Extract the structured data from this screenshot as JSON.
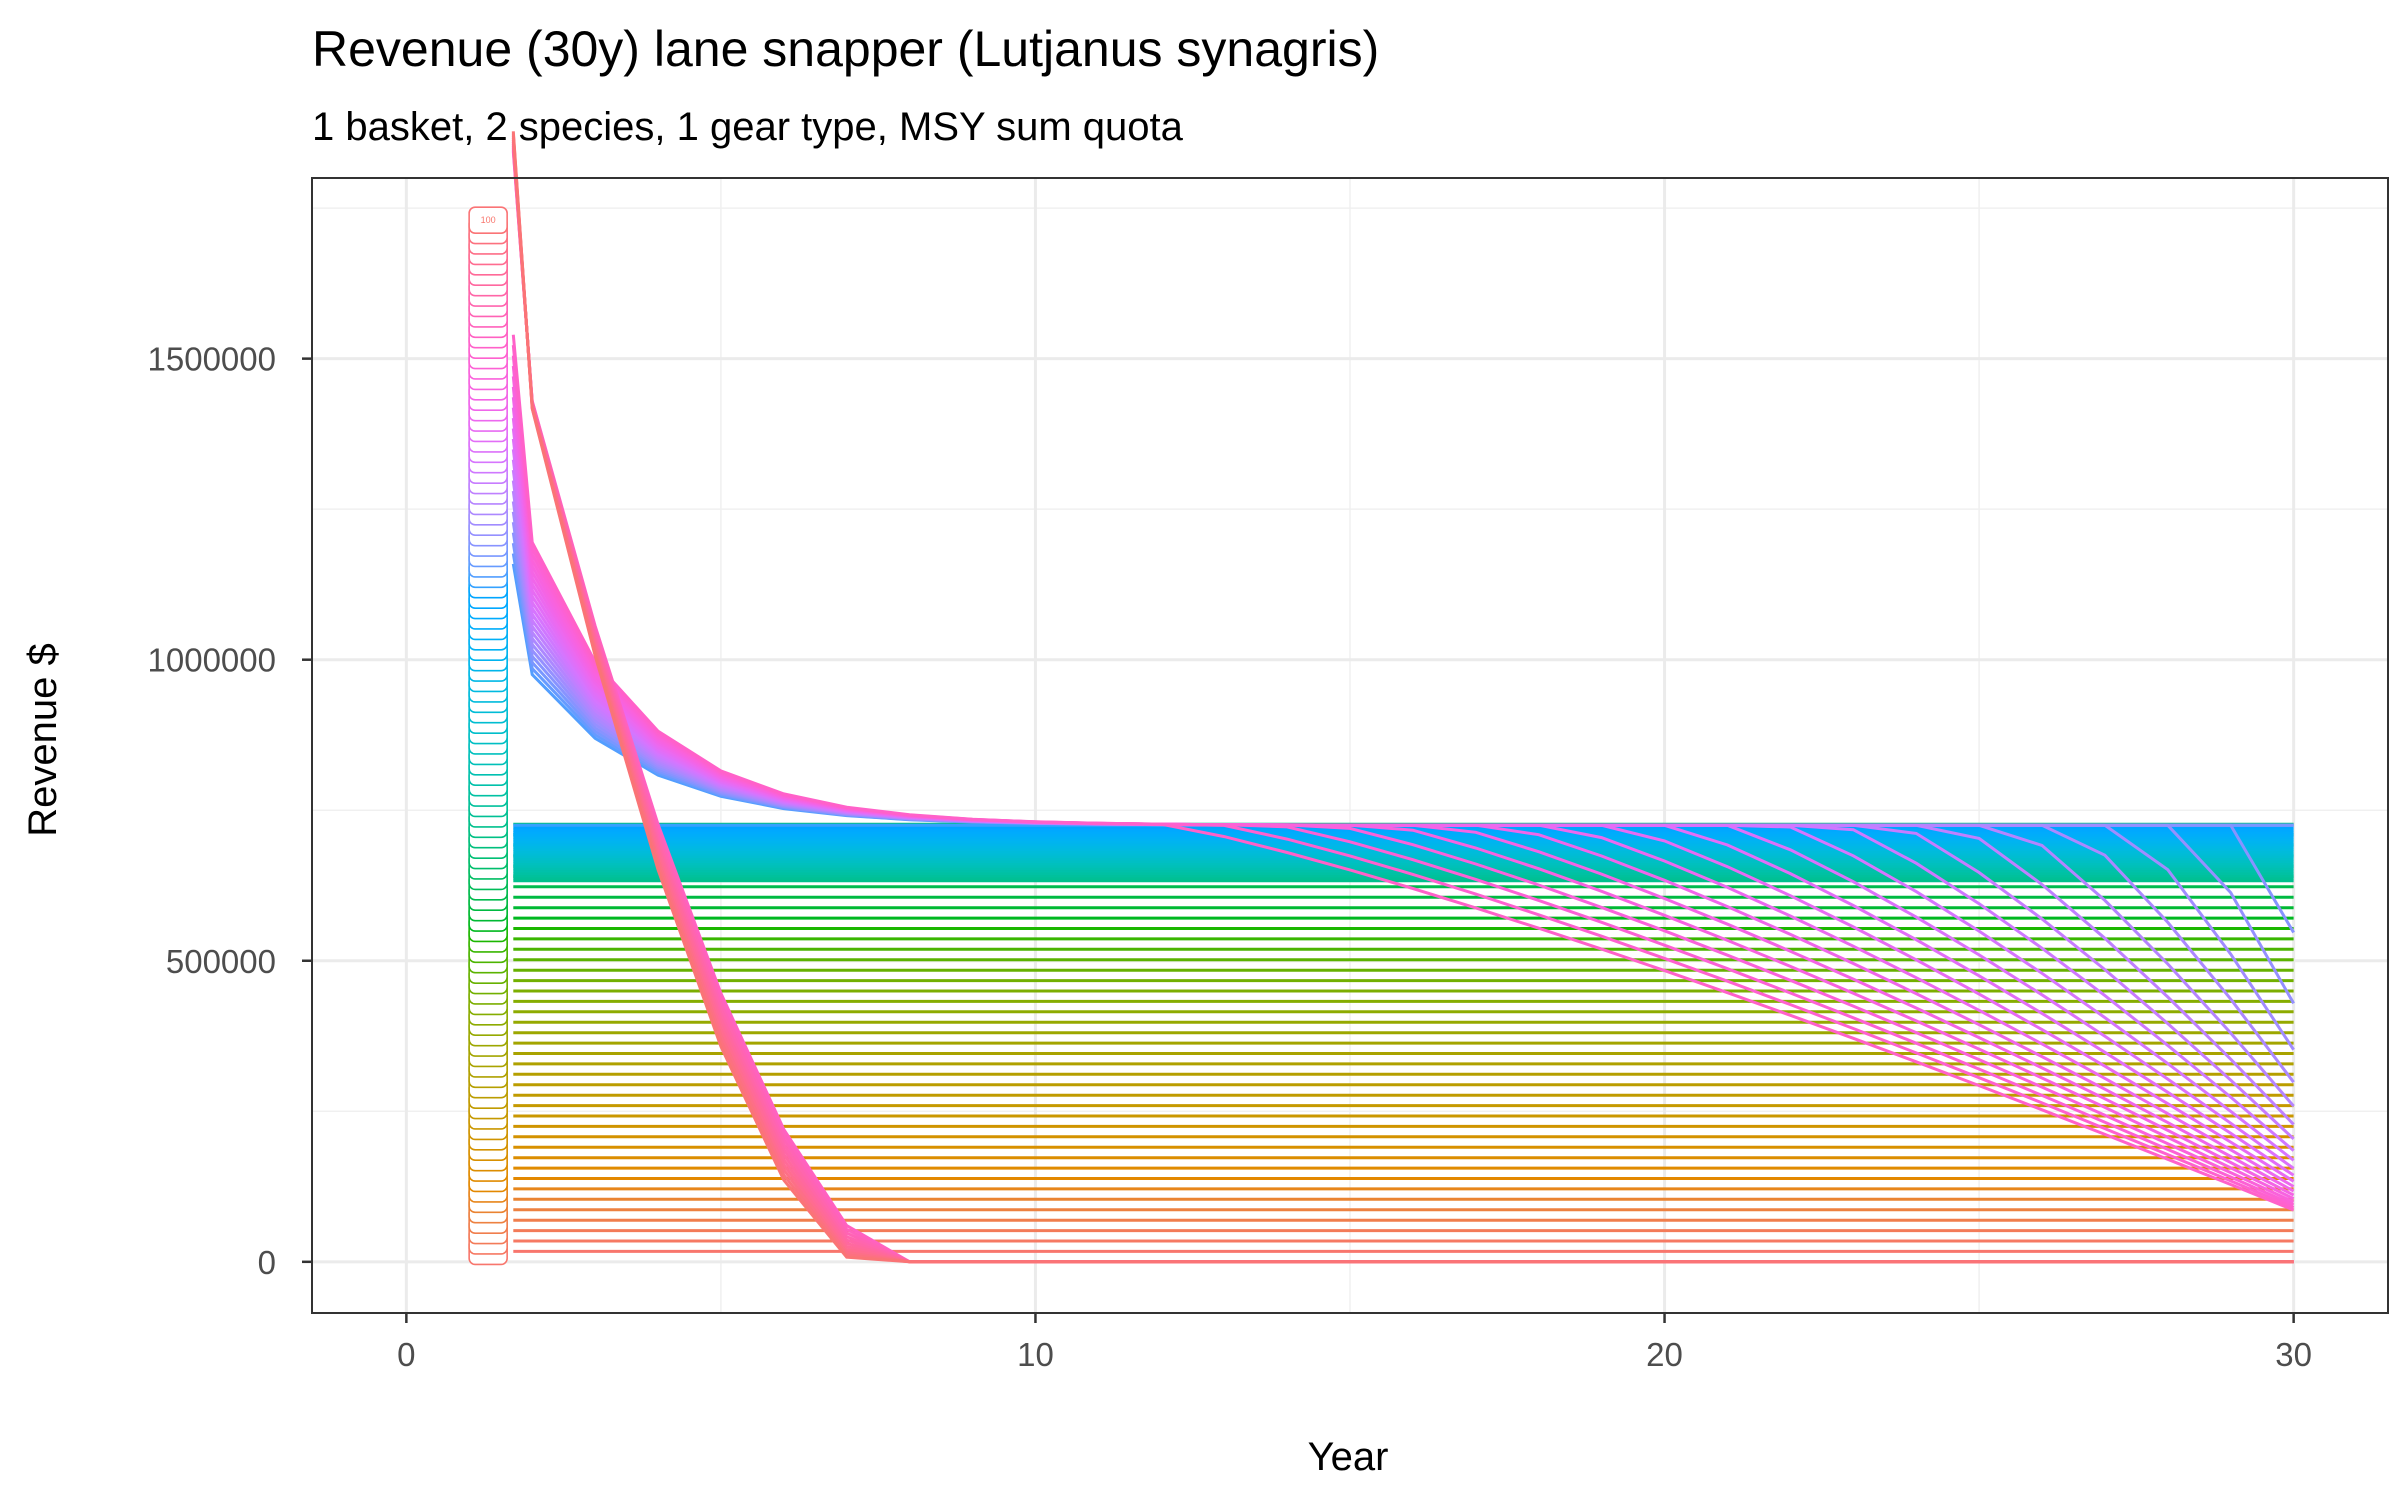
{
  "chart_data": {
    "type": "line",
    "title": "Revenue (30y) lane snapper (Lutjanus synagris)",
    "subtitle": "1 basket, 2 species, 1 gear type, MSY sum quota",
    "xlabel": "Year",
    "ylabel": "Revenue $",
    "xlim": [
      -1.5,
      31.5
    ],
    "ylim": [
      -85000,
      1800000
    ],
    "x_ticks": [
      0,
      10,
      20,
      30
    ],
    "x_tick_labels": [
      "0",
      "10",
      "20",
      "30"
    ],
    "y_ticks": [
      0,
      500000,
      1000000,
      1500000
    ],
    "y_tick_labels": [
      "0",
      "500000",
      "1000000",
      "1500000"
    ],
    "grid": true,
    "legend": "none",
    "series_count": 100,
    "series_ids": "1-100 (quota level index; only the topmost start label \"100\" is legible)",
    "x": [
      1,
      2,
      3,
      4,
      5,
      6,
      7,
      8,
      9,
      10,
      11,
      12,
      13,
      14,
      15,
      16,
      17,
      18,
      19,
      20,
      21,
      22,
      23,
      24,
      25,
      26,
      27,
      28,
      29,
      30
    ],
    "label_at_start": "100",
    "start_label_x": 1.3,
    "year1_revenue_range": [
      0,
      1730000
    ],
    "year1_revenue_step": 17300,
    "series_endpoints_year30_examples": [
      {
        "series": 100,
        "year30": 0
      },
      {
        "series": 1,
        "year30": 17000
      },
      {
        "series": "top plateau",
        "year30": 725000
      }
    ],
    "notes_from_plot": [
      "Highest-quota series start near 1.55M at year ~1.7 and collapse to ~0 by year ~7",
      "Mid-quota series converge toward a ~710,000-725,000 plateau around year 10",
      "Low-quota series stay roughly flat at their starting level through year 30",
      "Blue series near the plateau slowly decline after year ~12, reaching 0-620,000 by year 30"
    ]
  }
}
